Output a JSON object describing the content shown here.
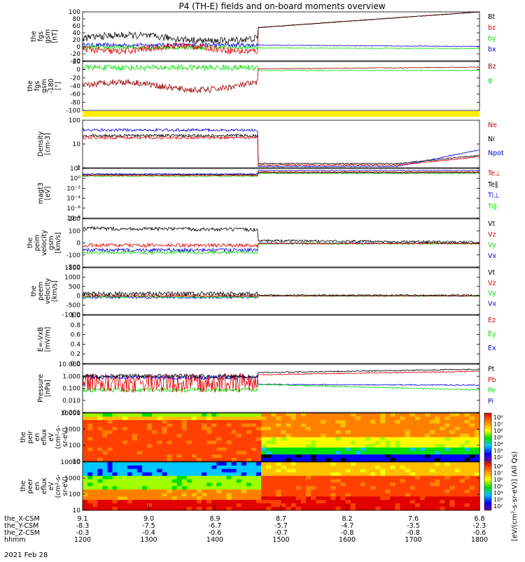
{
  "title": "P4 (TH-E) fields and on-board moments overview",
  "date_label": "2021 Feb 28",
  "colorbar_label": "[eV/(cm²-s-sr-eV)] (All Qs)",
  "colors": {
    "black": "#000000",
    "red": "#e00000",
    "darkred": "#9a0000",
    "green": "#00e000",
    "blue": "#0000e0",
    "yellow": "#ffee00"
  },
  "xaxis": {
    "rows": [
      {
        "label": "the_X-CSM",
        "values": [
          "9.1",
          "9.0",
          "8.9",
          "8.7",
          "8.2",
          "7.6",
          "6.8"
        ]
      },
      {
        "label": "the_Y-CSM",
        "values": [
          "-8.3",
          "-7.5",
          "-6.7",
          "-5.7",
          "-4.7",
          "-3.5",
          "-2.3"
        ]
      },
      {
        "label": "the_Z-CSM",
        "values": [
          "-0.3",
          "-0.4",
          "-0.6",
          "-0.7",
          "-0.8",
          "-0.8",
          "-0.6"
        ]
      },
      {
        "label": "hhmm",
        "values": [
          "1200",
          "1300",
          "1400",
          "1500",
          "1600",
          "1700",
          "1800"
        ]
      }
    ]
  },
  "chart_data": [
    {
      "type": "line",
      "panel": "fgs",
      "ylabel": [
        "the",
        "fgs",
        "gsm",
        "[nT]"
      ],
      "ylim": [
        -40,
        100
      ],
      "ticks": [
        "100",
        "80",
        "60",
        "40",
        "20",
        "0",
        "-20",
        "-40"
      ],
      "series": [
        {
          "name": "Bt",
          "color": "black"
        },
        {
          "name": "bz",
          "color": "red"
        },
        {
          "name": "by",
          "color": "green"
        },
        {
          "name": "bx",
          "color": "blue"
        }
      ]
    },
    {
      "type": "line",
      "panel": "fgs-vectors",
      "ylabel": [
        "the",
        "fgs",
        "gsm",
        "-180",
        "[°]"
      ],
      "ylim": [
        -100,
        20
      ],
      "ticks": [
        "20",
        "0",
        "-20",
        "-40",
        "-60",
        "-80",
        "-100"
      ],
      "series": [
        {
          "name": "Bz",
          "color": "darkred"
        },
        {
          "name": "φ",
          "color": "green"
        }
      ]
    },
    {
      "type": "bar",
      "panel": "mode-bar",
      "color": "yellow"
    },
    {
      "type": "line",
      "panel": "density",
      "ylabel": [
        "Density",
        "[cm-3]"
      ],
      "log": true,
      "ticks": [
        "100",
        "10",
        "1"
      ],
      "series": [
        {
          "name": "Ne",
          "color": "red"
        },
        {
          "name": "Ni",
          "color": "black"
        },
        {
          "name": "Npot",
          "color": "blue"
        }
      ]
    },
    {
      "type": "line",
      "panel": "temperature",
      "ylabel": [
        "magt3",
        "[eV]"
      ],
      "log": true,
      "ticks": [
        "10²",
        "10⁰",
        "10⁻²",
        "10⁻⁴",
        "10⁻⁶",
        "10⁻⁸"
      ],
      "series": [
        {
          "name": "Te⊥",
          "color": "red"
        },
        {
          "name": "Te∥",
          "color": "black"
        },
        {
          "name": "Ti⊥",
          "color": "blue"
        },
        {
          "name": "Ti∥",
          "color": "green"
        }
      ]
    },
    {
      "type": "line",
      "panel": "peim-velocity",
      "ylabel": [
        "the",
        "peim",
        "velocity",
        "gsm",
        "[km/s]"
      ],
      "ylim": [
        -200,
        200
      ],
      "ticks": [
        "200",
        "100",
        "0",
        "-100",
        "-200"
      ],
      "series": [
        {
          "name": "Vt",
          "color": "black"
        },
        {
          "name": "Vz",
          "color": "red"
        },
        {
          "name": "Vy",
          "color": "green"
        },
        {
          "name": "Vx",
          "color": "blue"
        }
      ]
    },
    {
      "type": "line",
      "panel": "peem-velocity",
      "ylabel": [
        "the",
        "peem",
        "velocity",
        "[km/s]"
      ],
      "ylim": [
        -1000,
        1500
      ],
      "ticks": [
        "1500",
        "1000",
        "500",
        "0",
        "-500",
        "-1000"
      ],
      "series": [
        {
          "name": "Vt",
          "color": "black"
        },
        {
          "name": "Vz",
          "color": "red"
        },
        {
          "name": "Vy",
          "color": "green"
        },
        {
          "name": "Vx",
          "color": "blue"
        }
      ]
    },
    {
      "type": "line",
      "panel": "e-field",
      "ylabel": [
        "E=-VxB",
        "[mV/m]"
      ],
      "ylim": [
        0,
        1
      ],
      "ticks": [
        "1.0",
        "0.8",
        "0.6",
        "0.4",
        "0.2",
        "0.0"
      ],
      "series": [
        {
          "name": "Ez",
          "color": "red"
        },
        {
          "name": "Ey",
          "color": "green"
        },
        {
          "name": "Ex",
          "color": "blue"
        }
      ]
    },
    {
      "type": "line",
      "panel": "pressure",
      "ylabel": [
        "Pressure",
        "[nPa]"
      ],
      "log": true,
      "ticks": [
        "10.000",
        "1.000",
        "0.100",
        "0.010",
        "0.001"
      ],
      "series": [
        {
          "name": "Pt",
          "color": "black"
        },
        {
          "name": "Pb",
          "color": "red"
        },
        {
          "name": "Pe",
          "color": "green"
        },
        {
          "name": "Pi",
          "color": "blue"
        }
      ]
    },
    {
      "type": "heatmap",
      "panel": "peir-spectrogram",
      "ylabel": [
        "the",
        "peir",
        "en",
        "eflux",
        "eV",
        "(cm²-s-",
        "sr-eV)"
      ],
      "log": true,
      "ticks": [
        "10000",
        "1000",
        "100",
        "10"
      ],
      "colorbar_ticks": [
        "10⁸",
        "10⁷",
        "10⁶",
        "10⁵",
        "10⁴",
        "10³",
        "10²"
      ]
    },
    {
      "type": "heatmap",
      "panel": "peer-spectrogram",
      "ylabel": [
        "the",
        "peer",
        "en",
        "eflux",
        "eV",
        "(cm²-s-",
        "sr-eV)"
      ],
      "log": true,
      "ticks": [
        "10000",
        "1000",
        "100",
        "10"
      ],
      "colorbar_ticks": [
        "10⁸",
        "10⁷",
        "10⁶",
        "10⁵",
        "10⁴",
        "10³",
        "10²"
      ]
    }
  ]
}
